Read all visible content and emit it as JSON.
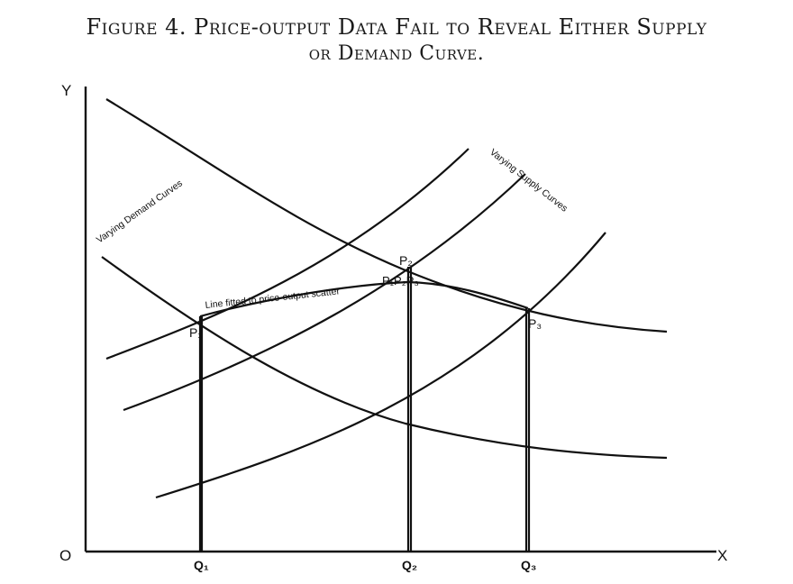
{
  "figure": {
    "title_line1": "Figure 4.  Price-output Data Fail to Reveal Either Supply",
    "title_line2": "or Demand Curve."
  },
  "axes": {
    "origin": "O",
    "x": "X",
    "y": "Y"
  },
  "quantities": [
    "Q₁",
    "Q₂",
    "Q₃"
  ],
  "points": {
    "p1": "P₁",
    "p2_upper": "P₂",
    "p2_group": "P₁P₂P₃",
    "p3": "P₃"
  },
  "annotations": {
    "demand_curves": "Varying Demand Curves",
    "supply_curves": "Varying Supply Curves",
    "fitted_line": "Line fitted to price-output scatter"
  }
}
